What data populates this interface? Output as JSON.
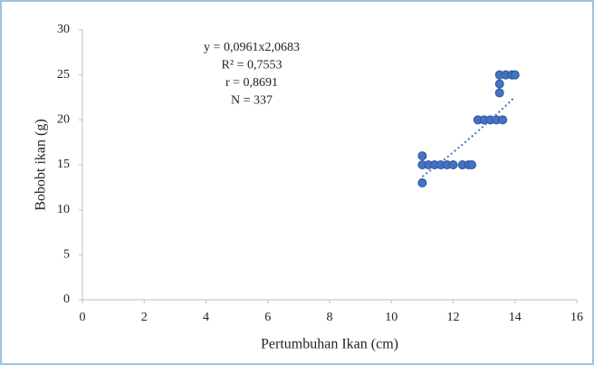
{
  "chart_data": {
    "type": "scatter",
    "x_label": "Pertumbuhan Ikan  (cm)",
    "y_label": "Bobobt ikan (g)",
    "annotations": [
      "y = 0,0961x2,0683",
      "R² = 0,7553",
      "r = 0,8691",
      "N = 337"
    ],
    "series": [
      {
        "color": "#4472c4",
        "x": [
          11,
          11,
          11,
          11.2,
          11.4,
          11.6,
          11.8,
          12,
          12.3,
          12.5,
          12.6,
          12.8,
          13,
          13.2,
          13.4,
          13.6,
          13.5,
          13.5,
          13.5,
          13.7,
          13.9,
          14
        ],
        "values": [
          13,
          16,
          15,
          15,
          15,
          15,
          15,
          15,
          15,
          15,
          15,
          20,
          20,
          20,
          20,
          20,
          23,
          24,
          25,
          25,
          25,
          25
        ]
      }
    ],
    "trendline": {
      "type": "power",
      "a": 0.0961,
      "b": 2.0683
    },
    "xlim": [
      0,
      16
    ],
    "xticks": [
      0,
      2,
      4,
      6,
      8,
      10,
      12,
      14,
      16
    ],
    "ylim": [
      0,
      30
    ],
    "yticks": [
      0,
      5,
      10,
      15,
      20,
      25,
      30
    ],
    "grid": false
  }
}
